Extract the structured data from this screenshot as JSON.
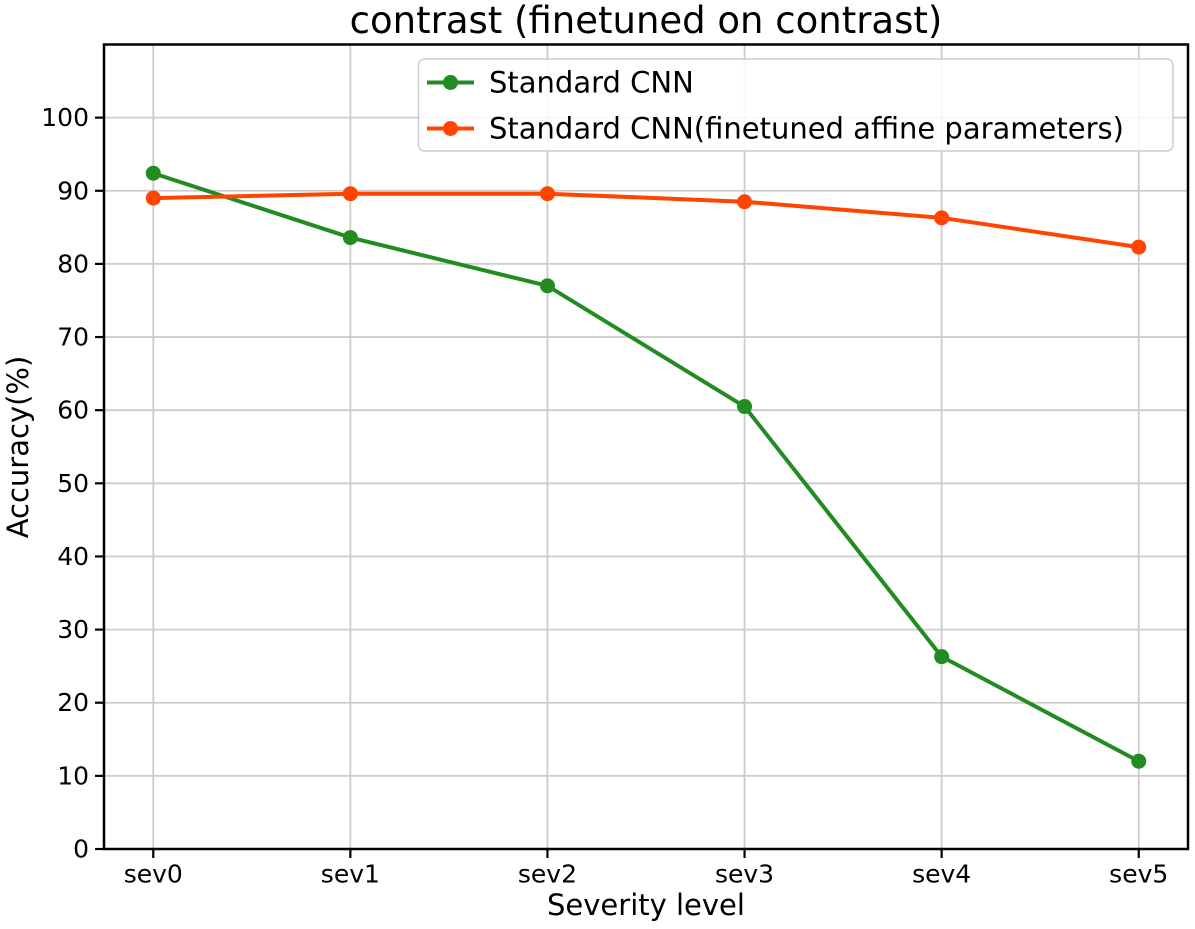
{
  "chart_data": {
    "type": "line",
    "title": "contrast (finetuned on contrast)",
    "xlabel": "Severity level",
    "ylabel": "Accuracy(%)",
    "categories": [
      "sev0",
      "sev1",
      "sev2",
      "sev3",
      "sev4",
      "sev5"
    ],
    "series": [
      {
        "name": "Standard CNN",
        "color": "#228b22",
        "marker": "circle",
        "values": [
          92.4,
          83.6,
          77.0,
          60.5,
          26.3,
          12.0
        ]
      },
      {
        "name": "Standard CNN(finetuned affine parameters)",
        "color": "#ff4500",
        "marker": "circle",
        "values": [
          89.0,
          89.6,
          89.6,
          88.5,
          86.3,
          82.3
        ]
      }
    ],
    "ylim": [
      0,
      110
    ],
    "yticks": [
      0,
      10,
      20,
      30,
      40,
      50,
      60,
      70,
      80,
      90,
      100
    ],
    "grid": true,
    "legend_position": "upper center",
    "colors": {
      "grid": "#cccccc",
      "spine": "#000000",
      "tick": "#000000",
      "text": "#000000",
      "legend_border": "#cccccc",
      "legend_fill": "#ffffff"
    }
  }
}
